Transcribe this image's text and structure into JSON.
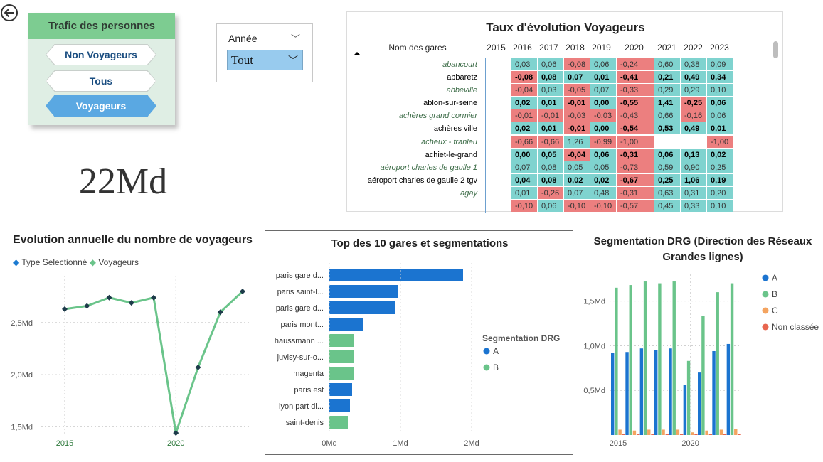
{
  "trafic": {
    "title": "Trafic des personnes",
    "buttons": [
      "Non Voyageurs",
      "Tous",
      "Voyageurs"
    ],
    "selected": "Voyageurs"
  },
  "annee": {
    "label": "Année",
    "value": "Tout"
  },
  "kpi": {
    "value": "22Md"
  },
  "matrix": {
    "title": "Taux d'évolution Voyageurs",
    "name_header": "Nom des gares",
    "years": [
      "2015",
      "2016",
      "2017",
      "2018",
      "2019",
      "2020",
      "2021",
      "2022",
      "2023"
    ],
    "rows": [
      {
        "name": "abancourt",
        "style": "it",
        "v": [
          "0,03",
          "0,06",
          "-0,08",
          "0,06",
          "-0,24",
          "0,60",
          "0,38",
          "0,09"
        ]
      },
      {
        "name": "abbaretz",
        "style": "bd",
        "v": [
          "-0,08",
          "0,08",
          "0,07",
          "0,01",
          "-0,41",
          "0,21",
          "0,49",
          "0,34"
        ]
      },
      {
        "name": "abbeville",
        "style": "it",
        "v": [
          "-0,04",
          "0,03",
          "-0,05",
          "0,07",
          "-0,33",
          "0,29",
          "0,29",
          "0,10"
        ]
      },
      {
        "name": "ablon-sur-seine",
        "style": "bd",
        "v": [
          "0,02",
          "0,01",
          "-0,01",
          "0,00",
          "-0,55",
          "1,41",
          "-0,25",
          "0,06"
        ]
      },
      {
        "name": "achères grand cormier",
        "style": "it",
        "v": [
          "-0,01",
          "-0,01",
          "-0,03",
          "-0,03",
          "-0,43",
          "0,66",
          "-0,16",
          "0,06"
        ]
      },
      {
        "name": "achères ville",
        "style": "bd",
        "v": [
          "0,02",
          "0,01",
          "-0,01",
          "0,00",
          "-0,54",
          "0,53",
          "0,49",
          "0,01"
        ]
      },
      {
        "name": "acheux - franleu",
        "style": "it",
        "v": [
          "-0,66",
          "-0,66",
          "1,26",
          "-0,99",
          "-1,00",
          "",
          "",
          "-1,00"
        ]
      },
      {
        "name": "achiet-le-grand",
        "style": "bd",
        "v": [
          "0,00",
          "0,05",
          "-0,04",
          "0,06",
          "-0,31",
          "0,06",
          "0,13",
          "0,02"
        ]
      },
      {
        "name": "aéroport charles de gaulle 1",
        "style": "it",
        "v": [
          "0,07",
          "0,08",
          "0,05",
          "0,05",
          "-0,73",
          "0,59",
          "0,90",
          "0,25"
        ]
      },
      {
        "name": "aéroport charles de gaulle 2 tgv",
        "style": "bd",
        "v": [
          "0,04",
          "0,08",
          "0,02",
          "0,02",
          "-0,67",
          "0,25",
          "1,06",
          "0,19"
        ]
      },
      {
        "name": "agay",
        "style": "it",
        "v": [
          "0,01",
          "-0,26",
          "0,07",
          "0,48",
          "-0,31",
          "0,63",
          "0,31",
          "0,20"
        ]
      },
      {
        "name": "",
        "style": "it",
        "v": [
          "-0,10",
          "0,06",
          "-0,10",
          "-0,10",
          "-0,57",
          "0,45",
          "0,33",
          "0,10"
        ]
      }
    ]
  },
  "line_panel": {
    "title": "Evolution annuelle du nombre de voyageurs",
    "legend": [
      "Type Selectionné",
      "Voyageurs"
    ]
  },
  "bar_panel": {
    "title": "Top des 10 gares et segmentations"
  },
  "drg_panel": {
    "title": "Segmentation DRG (Direction des Réseaux Grandes lignes)"
  },
  "colors": {
    "A": "#1b74d0",
    "B": "#6ac48a",
    "C": "#f4a460",
    "NC": "#e8664f",
    "line": "#6ac48a",
    "marker": "#1d3b4a"
  },
  "chart_data": [
    {
      "type": "line",
      "title": "Evolution annuelle du nombre de voyageurs",
      "x": [
        2015,
        2016,
        2017,
        2018,
        2019,
        2020,
        2021,
        2022,
        2023
      ],
      "xticks": [
        "2015",
        "2020"
      ],
      "yticks": [
        "1,5Md",
        "2,0Md",
        "2,5Md"
      ],
      "ylim": [
        1.42,
        2.95
      ],
      "legend": [
        "Type Selectionné",
        "Voyageurs"
      ],
      "series": [
        {
          "name": "Voyageurs",
          "values": [
            2.63,
            2.66,
            2.74,
            2.69,
            2.74,
            1.44,
            2.07,
            2.6,
            2.8
          ]
        }
      ]
    },
    {
      "type": "bar",
      "title": "Top des 10 gares et segmentations",
      "categories": [
        "paris gare d...",
        "paris saint-l...",
        "paris gare d...",
        "paris mont...",
        "haussmann ...",
        "juvisy-sur-o...",
        "magenta",
        "paris est",
        "lyon part di...",
        "saint-denis"
      ],
      "values": [
        1.88,
        0.96,
        0.92,
        0.48,
        0.35,
        0.34,
        0.34,
        0.32,
        0.29,
        0.26
      ],
      "segment": [
        "A",
        "A",
        "A",
        "A",
        "B",
        "B",
        "B",
        "A",
        "A",
        "B"
      ],
      "xticks": [
        "0Md",
        "1Md",
        "2Md"
      ],
      "xlim": [
        0,
        2
      ],
      "legend_title": "Segmentation DRG",
      "legend": [
        "A",
        "B"
      ]
    },
    {
      "type": "bar",
      "title": "Segmentation DRG (Direction des Réseaux Grandes lignes)",
      "x": [
        2015,
        2016,
        2017,
        2018,
        2019,
        2020,
        2021,
        2022,
        2023
      ],
      "xticks": [
        "2015",
        "2020"
      ],
      "yticks": [
        "0,5Md",
        "1,0Md",
        "1,5Md"
      ],
      "ylim": [
        0,
        1.8
      ],
      "legend": [
        "A",
        "B",
        "C",
        "Non classée"
      ],
      "series": [
        {
          "name": "A",
          "values": [
            0.92,
            0.93,
            0.97,
            0.95,
            0.97,
            0.56,
            0.7,
            0.94,
            1.02
          ]
        },
        {
          "name": "B",
          "values": [
            1.65,
            1.68,
            1.72,
            1.7,
            1.72,
            0.83,
            1.33,
            1.6,
            1.7
          ]
        },
        {
          "name": "C",
          "values": [
            0.06,
            0.05,
            0.06,
            0.06,
            0.06,
            0.03,
            0.05,
            0.06,
            0.07
          ]
        },
        {
          "name": "Non classée",
          "values": [
            0.01,
            0.01,
            0.01,
            0.01,
            0.01,
            0.01,
            0.01,
            0.01,
            0.01
          ]
        }
      ]
    }
  ]
}
